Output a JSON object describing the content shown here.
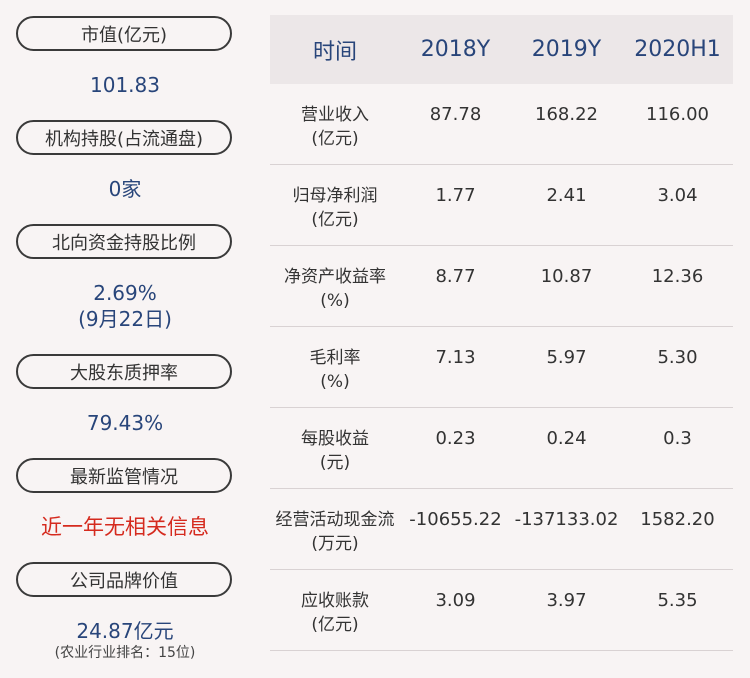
{
  "left": {
    "items": [
      {
        "label": "市值(亿元)",
        "value": "101.83"
      },
      {
        "label": "机构持股(占流通盘)",
        "value": "0家"
      },
      {
        "label": "北向资金持股比例",
        "value": "2.69%",
        "value2": "(9月22日)"
      },
      {
        "label": "大股东质押率",
        "value": "79.43%"
      },
      {
        "label": "最新监管情况",
        "value": "近一年无相关信息"
      },
      {
        "label": "公司品牌价值",
        "value": "24.87亿元",
        "note": "(农业行业排名：15位)"
      }
    ]
  },
  "table": {
    "headers": [
      "时间",
      "2018Y",
      "2019Y",
      "2020H1"
    ],
    "rows": [
      {
        "name": "营业收入",
        "unit": "(亿元)",
        "values": [
          "87.78",
          "168.22",
          "116.00"
        ]
      },
      {
        "name": "归母净利润",
        "unit": "(亿元)",
        "values": [
          "1.77",
          "2.41",
          "3.04"
        ]
      },
      {
        "name": "净资产收益率",
        "unit": "(%)",
        "values": [
          "8.77",
          "10.87",
          "12.36"
        ]
      },
      {
        "name": "毛利率",
        "unit": "(%)",
        "values": [
          "7.13",
          "5.97",
          "5.30"
        ]
      },
      {
        "name": "每股收益",
        "unit": "(元)",
        "values": [
          "0.23",
          "0.24",
          "0.3"
        ]
      },
      {
        "name": "经营活动现金流",
        "unit": "(万元)",
        "values": [
          "-10655.22",
          "-137133.02",
          "1582.20"
        ]
      },
      {
        "name": "应收账款",
        "unit": "(亿元)",
        "values": [
          "3.09",
          "3.97",
          "5.35"
        ]
      }
    ]
  }
}
